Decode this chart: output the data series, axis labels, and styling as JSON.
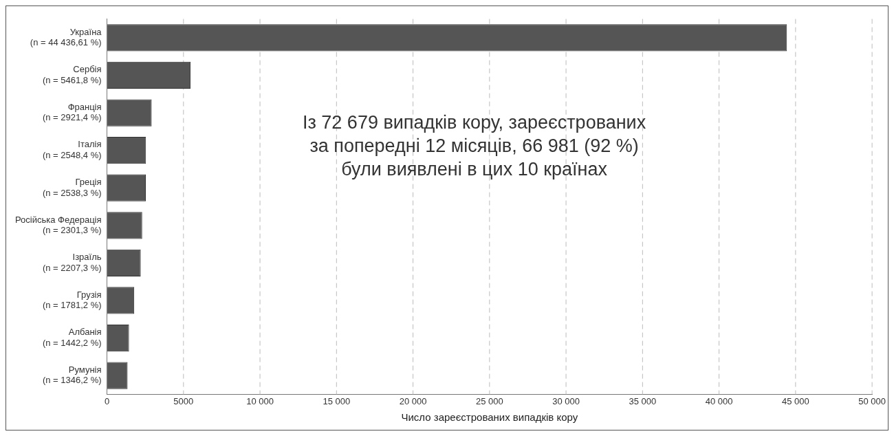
{
  "chart_data": {
    "type": "bar",
    "orientation": "horizontal",
    "categories": [
      "Україна\n(n = 44 436,61 %)",
      "Сербія\n(n = 5461,8 %)",
      "Франція\n(n = 2921,4 %)",
      "Італія\n(n = 2548,4 %)",
      "Греція\n(n = 2538,3 %)",
      "Російська Федерація\n(n = 2301,3 %)",
      "Ізраїль\n(n = 2207,3 %)",
      "Грузія\n(n = 1781,2 %)",
      "Албанія\n(n = 1442,2 %)",
      "Румунія\n(n = 1346,2 %)"
    ],
    "values": [
      44436,
      5461,
      2921,
      2548,
      2538,
      2301,
      2207,
      1781,
      1442,
      1346
    ],
    "color": "#555555",
    "xlim": [
      0,
      50000
    ],
    "xticks": [
      0,
      5000,
      {
        "value": 10000,
        "label": "10 000"
      },
      {
        "value": 15000,
        "label": "15 000"
      },
      {
        "value": 20000,
        "label": "20 000"
      },
      {
        "value": 25000,
        "label": "25 000"
      },
      {
        "value": 30000,
        "label": "30 000"
      },
      {
        "value": 35000,
        "label": "35 000"
      },
      {
        "value": 40000,
        "label": "40 000"
      },
      {
        "value": 45000,
        "label": "45 000"
      },
      {
        "value": 50000,
        "label": "50 000"
      }
    ],
    "xlabel": "Число зареєстрованих випадків кору",
    "grid": "x",
    "legend": false,
    "annotations": [
      "Із 72 679 випадків кору, зареєстрованих\nза попередні 12 місяців, 66 981 (92 %)\nбули виявлені в цих 10 країнах"
    ]
  }
}
